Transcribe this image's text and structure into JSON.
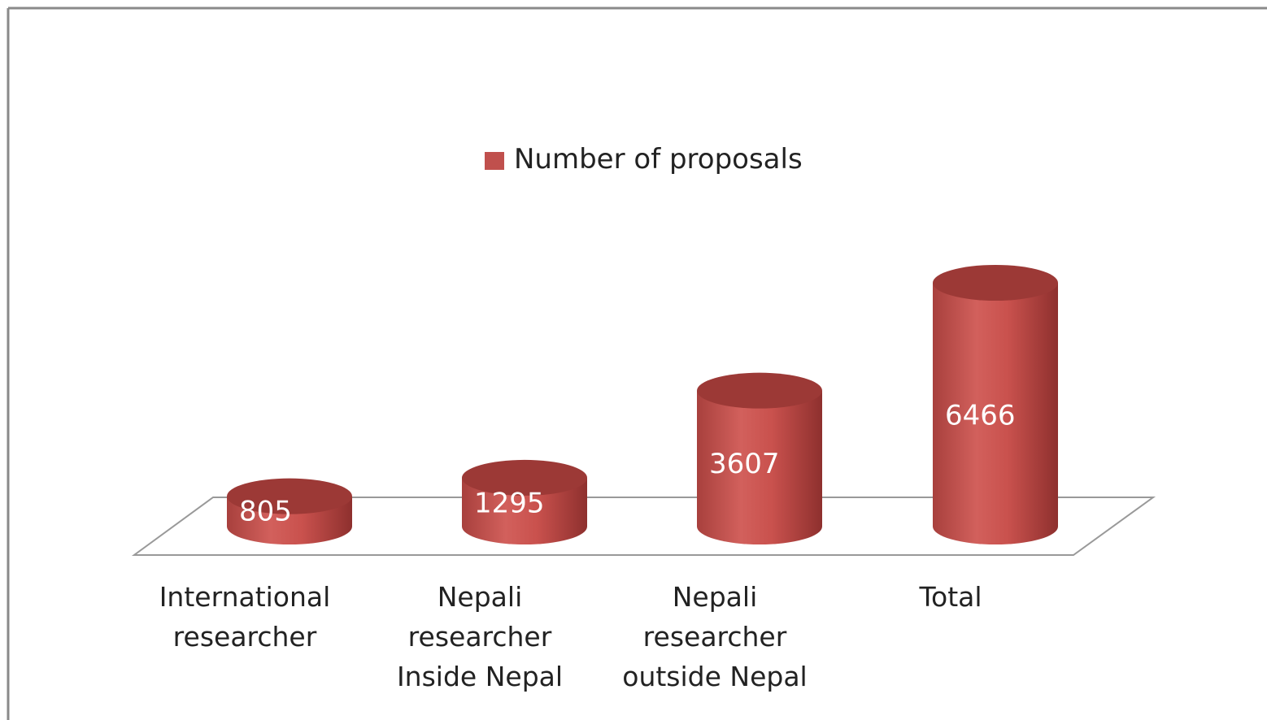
{
  "chart_data": {
    "type": "bar3d",
    "categories": [
      "International\nresearcher",
      "Nepali\nresearcher\nInside  Nepal",
      "Nepali\nresearcher\noutside Nepal",
      "Total"
    ],
    "series": [
      {
        "name": "Number of proposals",
        "color": "#c0504d",
        "values": [
          805,
          1295,
          3607,
          6466
        ]
      }
    ],
    "legend": "top"
  }
}
